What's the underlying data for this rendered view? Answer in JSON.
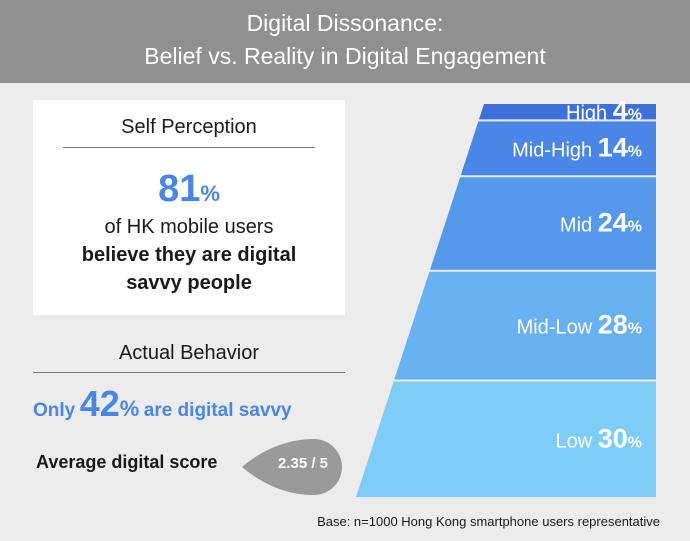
{
  "header": {
    "line1": "Digital Dissonance:",
    "line2": "Belief vs. Reality in Digital Engagement"
  },
  "self_perception": {
    "heading": "Self Perception",
    "value": "81",
    "percent_sign": "%",
    "text1": "of HK mobile users",
    "text2": "believe they are digital",
    "text3": "savvy people"
  },
  "actual_behavior": {
    "heading": "Actual Behavior",
    "prefix": "Only",
    "value": "42",
    "percent_sign": "%",
    "suffix": "are digital savvy",
    "avg_label": "Average digital score",
    "avg_score": "2.35 / 5"
  },
  "footnote": "Base: n=1000 Hong Kong smartphone users representative",
  "chart_data": {
    "type": "bar",
    "categories": [
      "High",
      "Mid-High",
      "Mid",
      "Mid-Low",
      "Low"
    ],
    "values": [
      4,
      14,
      24,
      28,
      30
    ],
    "unit": "%",
    "colors": [
      "#3d70d8",
      "#4a86e8",
      "#5599ec",
      "#67b1f0",
      "#7dcdf7"
    ]
  }
}
